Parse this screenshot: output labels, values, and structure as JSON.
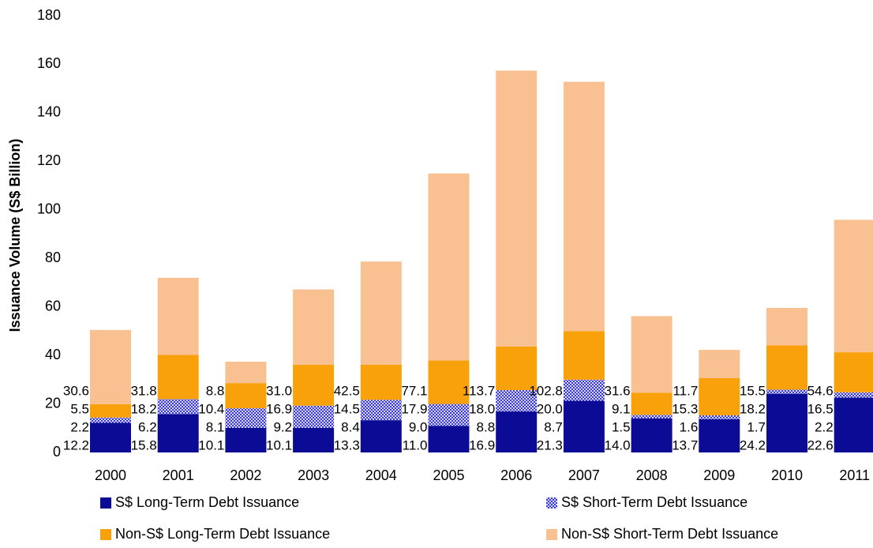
{
  "chart_data": {
    "type": "stacked_bar",
    "y_label": "Issuance Volume (S$ Billion)",
    "categories": [
      "2000",
      "2001",
      "2002",
      "2003",
      "2004",
      "2005",
      "2006",
      "2007",
      "2008",
      "2009",
      "2010",
      "2011"
    ],
    "series": [
      {
        "name": "S$ Long-Term Debt Issuance",
        "color": "#0b0b96",
        "values": [
          12.2,
          15.8,
          10.1,
          10.1,
          13.3,
          11.0,
          16.9,
          21.3,
          14.0,
          13.7,
          24.2,
          22.6
        ],
        "value_labels": [
          "12.2",
          "15.8",
          "10.1",
          "10.1",
          "13.3",
          "11.0",
          "16.9",
          "21.3",
          "14.0",
          "13.7",
          "24.2",
          "22.6"
        ]
      },
      {
        "name": "S$ Short-Term Debt Issuance",
        "color": "#3a3ad0",
        "pattern": "checkered",
        "values": [
          2.2,
          6.2,
          8.1,
          9.2,
          8.4,
          9.0,
          8.8,
          8.7,
          1.5,
          1.6,
          1.7,
          2.2
        ],
        "value_labels": [
          "2.2",
          "6.2",
          "8.1",
          "9.2",
          "8.4",
          "9.0",
          "8.8",
          "8.7",
          "1.5",
          "1.6",
          "1.7",
          "2.2"
        ]
      },
      {
        "name": "Non-S$ Long-Term Debt Issuance",
        "color": "#f9a10a",
        "values": [
          5.5,
          18.2,
          10.4,
          16.9,
          14.5,
          17.9,
          18.0,
          20.0,
          9.1,
          15.3,
          18.2,
          16.5
        ],
        "value_labels": [
          "5.5",
          "18.2",
          "10.4",
          "16.9",
          "14.5",
          "17.9",
          "18.0",
          "20.0",
          "9.1",
          "15.3",
          "18.2",
          "16.5"
        ]
      },
      {
        "name": "Non-S$ Short-Term Debt Issuance",
        "color": "#f9c191",
        "values": [
          30.6,
          31.8,
          8.8,
          31.0,
          42.5,
          77.1,
          113.7,
          102.8,
          31.6,
          11.7,
          15.5,
          54.6
        ],
        "value_labels": [
          "30.6",
          "31.8",
          "8.8",
          "31.0",
          "42.5",
          "77.1",
          "113.7",
          "102.8",
          "31.6",
          "11.7",
          "15.5",
          "54.6"
        ]
      }
    ],
    "ylim": [
      0,
      180
    ],
    "yticks": [
      0,
      20,
      40,
      60,
      80,
      100,
      120,
      140,
      160,
      180
    ],
    "grid": false,
    "legend": "bottom"
  }
}
